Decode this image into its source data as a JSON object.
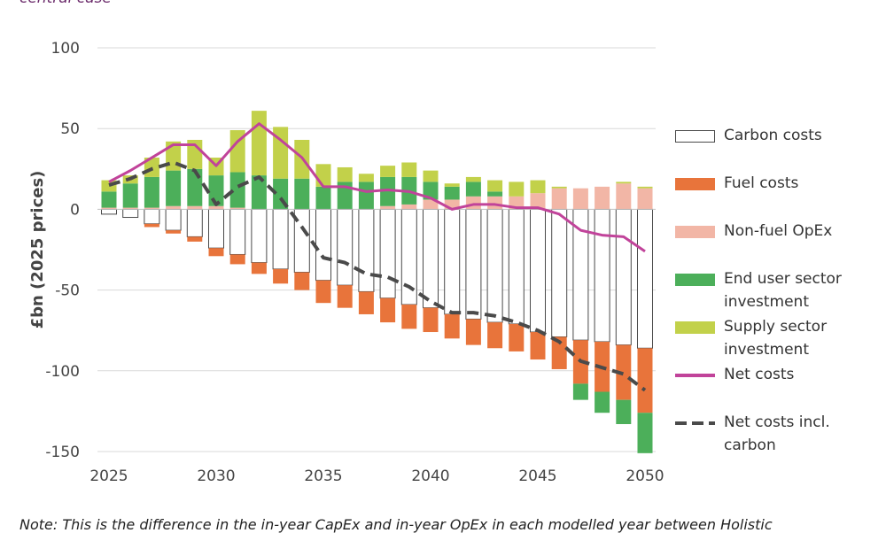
{
  "subtitle": "central case",
  "note": "Note: This is the difference in the in-year CapEx and in-year OpEx in each modelled year between Holistic",
  "chart_data": {
    "type": "bar",
    "stacked": true,
    "ylabel": "£bn (2025 prices)",
    "ylim": [
      -150,
      100
    ],
    "yticks": [
      100,
      50,
      0,
      -50,
      -100,
      -150
    ],
    "grid": true,
    "x": [
      2025,
      2026,
      2027,
      2028,
      2029,
      2030,
      2031,
      2032,
      2033,
      2034,
      2035,
      2036,
      2037,
      2038,
      2039,
      2040,
      2041,
      2042,
      2043,
      2044,
      2045,
      2046,
      2047,
      2048,
      2049,
      2050
    ],
    "xticks": [
      2025,
      2030,
      2035,
      2040,
      2045,
      2050
    ],
    "series": [
      {
        "name": "Carbon costs",
        "color": "#ffffff",
        "values": [
          -3,
          -5,
          -9,
          -13,
          -17,
          -24,
          -28,
          -33,
          -37,
          -39,
          -44,
          -47,
          -51,
          -55,
          -59,
          -61,
          -65,
          -68,
          -70,
          -71,
          -76,
          -79,
          -81,
          -82,
          -84,
          -86
        ]
      },
      {
        "name": "Fuel costs",
        "color": "#e8743b",
        "values": [
          0,
          0,
          -2,
          -2,
          -3,
          -5,
          -6,
          -7,
          -9,
          -11,
          -14,
          -14,
          -14,
          -15,
          -15,
          -15,
          -15,
          -16,
          -16,
          -17,
          -17,
          -20,
          -27,
          -31,
          -34,
          -40
        ]
      },
      {
        "name": "Non-fuel OpEx",
        "color": "#f2b6a6",
        "values": [
          1,
          1,
          1,
          2,
          2,
          2,
          1,
          0,
          0,
          0,
          0,
          0,
          0,
          2,
          3,
          6,
          6,
          8,
          8,
          8,
          10,
          13,
          13,
          14,
          16,
          13
        ]
      },
      {
        "name": "End user sector investment",
        "color": "#4caf5a",
        "values": [
          10,
          15,
          19,
          22,
          23,
          19,
          22,
          21,
          19,
          19,
          14,
          17,
          17,
          18,
          17,
          11,
          8,
          9,
          3,
          0,
          0,
          0,
          -10,
          -13,
          -15,
          -25
        ]
      },
      {
        "name": "Supply sector investment",
        "color": "#c2d14a",
        "values": [
          7,
          5,
          12,
          18,
          18,
          11,
          26,
          40,
          32,
          24,
          14,
          9,
          5,
          7,
          9,
          7,
          2,
          3,
          7,
          9,
          8,
          1,
          0,
          0,
          1,
          1
        ]
      }
    ],
    "lines": [
      {
        "name": "Net costs",
        "color": "#c1439a",
        "style": "solid",
        "values": [
          17,
          24,
          32,
          40,
          40,
          27,
          42,
          53,
          43,
          32,
          14,
          14,
          11,
          12,
          11,
          7,
          0,
          3,
          3,
          1,
          1,
          -3,
          -13,
          -16,
          -17,
          -26
        ]
      },
      {
        "name": "Net costs incl. carbon",
        "color": "#4a4a4a",
        "style": "dashed",
        "values": [
          15,
          19,
          25,
          29,
          24,
          3,
          14,
          20,
          7,
          -11,
          -30,
          -33,
          -40,
          -42,
          -48,
          -57,
          -64,
          -64,
          -66,
          -70,
          -75,
          -82,
          -94,
          -98,
          -102,
          -112
        ]
      }
    ],
    "legend": "right",
    "legend_items": [
      {
        "label": "Carbon costs",
        "kind": "box",
        "color": "#ffffff",
        "border": "#4a4a4a"
      },
      {
        "label": "Fuel costs",
        "kind": "box",
        "color": "#e8743b",
        "border": "#e8743b"
      },
      {
        "label": "Non-fuel OpEx",
        "kind": "box",
        "color": "#f2b6a6",
        "border": "#f2b6a6"
      },
      {
        "label": "End user sector investment",
        "kind": "box",
        "color": "#4caf5a",
        "border": "#4caf5a"
      },
      {
        "label": "Supply sector investment",
        "kind": "box",
        "color": "#c2d14a",
        "border": "#c2d14a"
      },
      {
        "label": "Net costs",
        "kind": "line",
        "color": "#c1439a"
      },
      {
        "label": "Net costs incl. carbon",
        "kind": "dash",
        "color": "#4a4a4a"
      }
    ]
  }
}
